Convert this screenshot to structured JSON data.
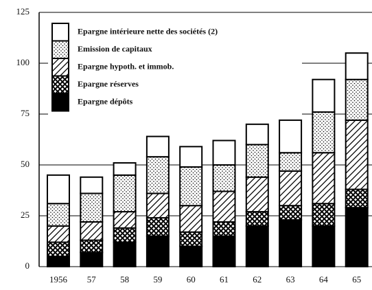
{
  "chart_data": {
    "type": "stacked-bar",
    "categories": [
      "1956",
      "57",
      "58",
      "59",
      "60",
      "61",
      "62",
      "63",
      "64",
      "65"
    ],
    "series": [
      {
        "name": "Epargne dépôts",
        "color": "#000000",
        "pattern": "solid",
        "values": [
          5,
          7,
          12,
          15,
          10,
          15,
          20,
          23,
          20,
          29
        ]
      },
      {
        "name": "Epargne réserves",
        "color": "#000000",
        "pattern": "crosshatch",
        "values": [
          7,
          6,
          7,
          9,
          7,
          7,
          7,
          7,
          11,
          9
        ]
      },
      {
        "name": "Epargne hypoth. et immob.",
        "color": "#000000",
        "pattern": "hatch",
        "values": [
          8,
          9,
          8,
          12,
          13,
          15,
          17,
          17,
          25,
          34
        ]
      },
      {
        "name": "Emission de capitaux",
        "color": "#000000",
        "pattern": "dots",
        "values": [
          11,
          14,
          18,
          18,
          19,
          13,
          16,
          9,
          20,
          20
        ]
      },
      {
        "name": "Epargne intérieure nette des sociétés (2)",
        "color": "#000000",
        "pattern": "none",
        "values": [
          14,
          8,
          6,
          10,
          10,
          12,
          10,
          16,
          16,
          13
        ]
      }
    ],
    "ylim": [
      0,
      125
    ],
    "yticks": [
      0,
      25,
      50,
      75,
      100,
      125
    ],
    "grid": true
  }
}
